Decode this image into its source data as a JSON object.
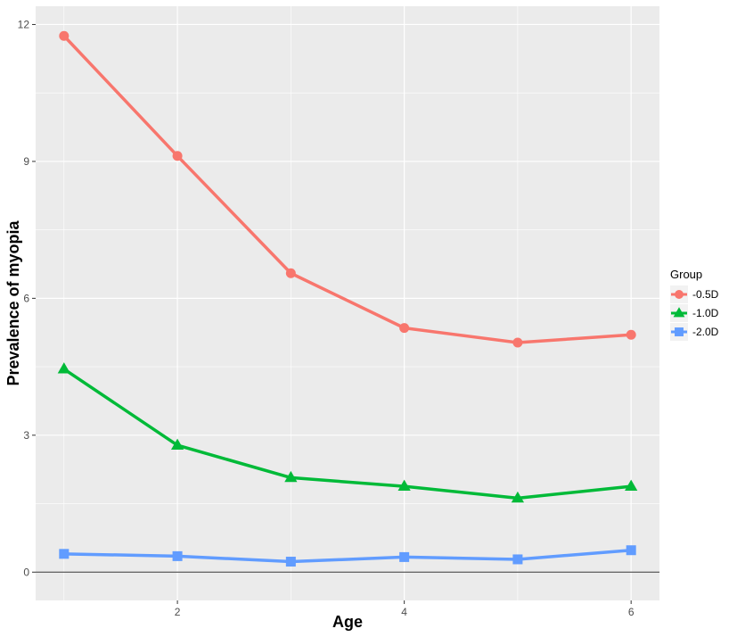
{
  "chart_data": {
    "type": "line",
    "title": "",
    "xlabel": "Age",
    "ylabel": "Prevalence of myopia",
    "x": [
      1,
      2,
      3,
      4,
      5,
      6
    ],
    "xticks": [
      2,
      4,
      6
    ],
    "yticks": [
      0,
      3,
      6,
      9,
      12
    ],
    "xlim": [
      0.75,
      6.25
    ],
    "ylim": [
      -0.62,
      12.4
    ],
    "grid": true,
    "legend_title": "Group",
    "legend_position": "right",
    "background": "#EBEBEB",
    "series": [
      {
        "name": "-0.5D",
        "values": [
          11.75,
          9.12,
          6.55,
          5.35,
          5.03,
          5.2
        ],
        "marker": "circle",
        "color": "#F8766D"
      },
      {
        "name": "-1.0D",
        "values": [
          4.45,
          2.78,
          2.07,
          1.88,
          1.62,
          1.88
        ],
        "marker": "triangle",
        "color": "#00BA38"
      },
      {
        "name": "-2.0D",
        "values": [
          0.4,
          0.35,
          0.23,
          0.33,
          0.28,
          0.48
        ],
        "marker": "square",
        "color": "#619CFF"
      }
    ]
  }
}
